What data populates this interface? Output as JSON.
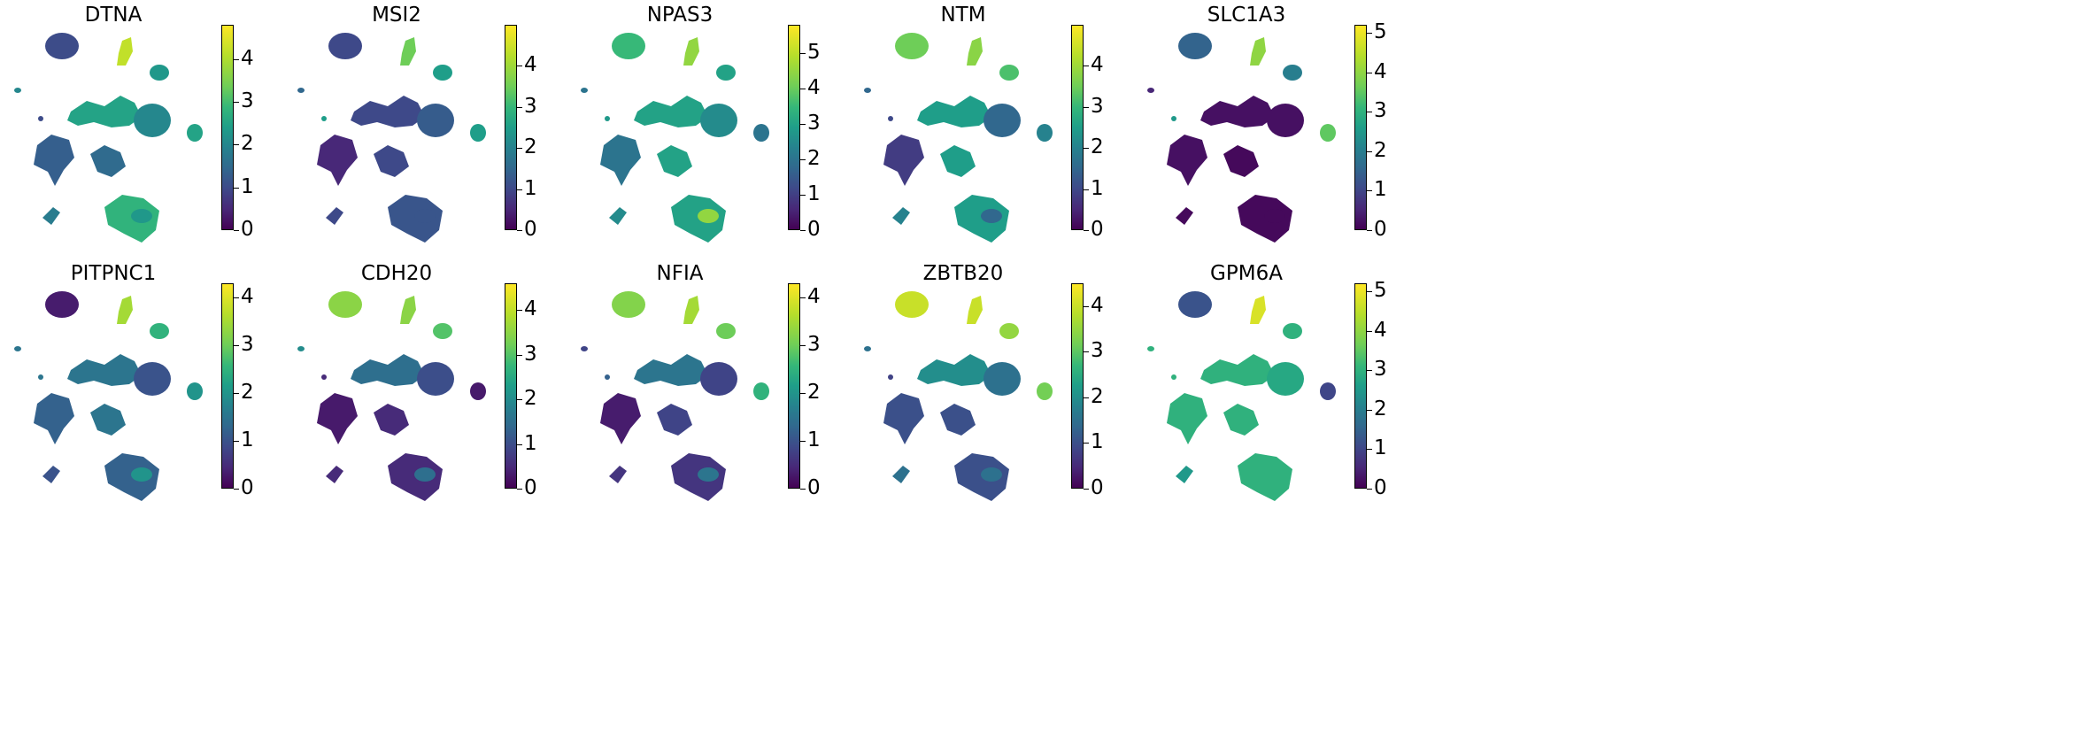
{
  "chart_data": [
    {
      "type": "scatter",
      "title": "DTNA",
      "colormap": "viridis",
      "colorbar_ticks": [
        0,
        1,
        2,
        3,
        4
      ],
      "colorbar_range": [
        0,
        4.8
      ],
      "cluster_values": {
        "c1": 1.0,
        "c2": 4.2,
        "c3": 2.3,
        "c4": 2.5,
        "c5": 2.0,
        "c6": 1.3,
        "c7": 2.5,
        "c8": 1.5,
        "c9": 2.8,
        "c10": 1.8,
        "c11": 2.0,
        "c12": 2.3,
        "c13": 1.0
      }
    },
    {
      "type": "scatter",
      "title": "MSI2",
      "colormap": "viridis",
      "colorbar_ticks": [
        0,
        1,
        2,
        3,
        4
      ],
      "colorbar_range": [
        0,
        5.0
      ],
      "cluster_values": {
        "c1": 1.0,
        "c2": 3.5,
        "c3": 2.5,
        "c4": 1.0,
        "c5": 1.3,
        "c6": 0.5,
        "c7": 2.5,
        "c8": 1.0,
        "c9": 1.2,
        "c10": 1.0,
        "c11": 1.5,
        "c12": 1.2,
        "c13": 2.5
      }
    },
    {
      "type": "scatter",
      "title": "NPAS3",
      "colormap": "viridis",
      "colorbar_ticks": [
        0,
        1,
        2,
        3,
        4,
        5
      ],
      "colorbar_range": [
        0,
        5.8
      ],
      "cluster_values": {
        "c1": 3.5,
        "c2": 4.5,
        "c3": 3.0,
        "c4": 3.0,
        "c5": 2.5,
        "c6": 2.0,
        "c7": 2.0,
        "c8": 3.0,
        "c9": 3.0,
        "c10": 2.5,
        "c11": 2.0,
        "c12": 4.5,
        "c13": 2.8
      }
    },
    {
      "type": "scatter",
      "title": "NTM",
      "colormap": "viridis",
      "colorbar_ticks": [
        0,
        1,
        2,
        3,
        4
      ],
      "colorbar_range": [
        0,
        5.0
      ],
      "cluster_values": {
        "c1": 3.5,
        "c2": 3.8,
        "c3": 3.2,
        "c4": 2.5,
        "c5": 1.5,
        "c6": 0.8,
        "c7": 2.0,
        "c8": 2.5,
        "c9": 2.5,
        "c10": 2.0,
        "c11": 1.5,
        "c12": 1.5,
        "c13": 1.0
      }
    },
    {
      "type": "scatter",
      "title": "SLC1A3",
      "colormap": "viridis",
      "colorbar_ticks": [
        0,
        1,
        2,
        3,
        4,
        5
      ],
      "colorbar_range": [
        0,
        5.2
      ],
      "cluster_values": {
        "c1": 1.5,
        "c2": 4.0,
        "c3": 2.0,
        "c4": 0.2,
        "c5": 0.2,
        "c6": 0.2,
        "c7": 3.5,
        "c8": 0.1,
        "c9": 0.1,
        "c10": 0.1,
        "c11": 0.5,
        "c12": 0.1,
        "c13": 2.5
      }
    },
    {
      "type": "scatter",
      "title": "PITPNC1",
      "colormap": "viridis",
      "colorbar_ticks": [
        0,
        1,
        2,
        3,
        4
      ],
      "colorbar_range": [
        0,
        4.3
      ],
      "cluster_values": {
        "c1": 0.3,
        "c2": 3.5,
        "c3": 2.5,
        "c4": 1.5,
        "c5": 1.0,
        "c6": 1.2,
        "c7": 2.0,
        "c8": 1.5,
        "c9": 1.2,
        "c10": 1.0,
        "c11": 1.5,
        "c12": 2.0,
        "c13": 1.5
      }
    },
    {
      "type": "scatter",
      "title": "CDH20",
      "colormap": "viridis",
      "colorbar_ticks": [
        0,
        1,
        2,
        3,
        4
      ],
      "colorbar_range": [
        0,
        4.6
      ],
      "cluster_values": {
        "c1": 3.5,
        "c2": 3.5,
        "c3": 3.0,
        "c4": 1.5,
        "c5": 1.0,
        "c6": 0.3,
        "c7": 0.3,
        "c8": 0.5,
        "c9": 0.5,
        "c10": 0.5,
        "c11": 2.0,
        "c12": 1.5,
        "c13": 0.5
      }
    },
    {
      "type": "scatter",
      "title": "NFIA",
      "colormap": "viridis",
      "colorbar_ticks": [
        0,
        1,
        2,
        3,
        4
      ],
      "colorbar_range": [
        0,
        4.3
      ],
      "cluster_values": {
        "c1": 3.2,
        "c2": 3.5,
        "c3": 3.0,
        "c4": 1.5,
        "c5": 0.8,
        "c6": 0.3,
        "c7": 2.5,
        "c8": 0.8,
        "c9": 0.6,
        "c10": 0.6,
        "c11": 0.8,
        "c12": 1.5,
        "c13": 1.2
      }
    },
    {
      "type": "scatter",
      "title": "ZBTB20",
      "colormap": "viridis",
      "colorbar_ticks": [
        0,
        1,
        2,
        3,
        4
      ],
      "colorbar_range": [
        0,
        4.5
      ],
      "cluster_values": {
        "c1": 4.0,
        "c2": 4.0,
        "c3": 3.5,
        "c4": 2.0,
        "c5": 1.5,
        "c6": 1.0,
        "c7": 3.2,
        "c8": 1.0,
        "c9": 1.0,
        "c10": 1.5,
        "c11": 1.5,
        "c12": 1.5,
        "c13": 0.8
      }
    },
    {
      "type": "scatter",
      "title": "GPM6A",
      "colormap": "viridis",
      "colorbar_ticks": [
        0,
        1,
        2,
        3,
        4,
        5
      ],
      "colorbar_range": [
        0,
        5.2
      ],
      "cluster_values": {
        "c1": 1.2,
        "c2": 4.8,
        "c3": 3.0,
        "c4": 3.0,
        "c5": 2.8,
        "c6": 3.0,
        "c7": 1.0,
        "c8": 3.0,
        "c9": 3.0,
        "c10": 2.5,
        "c11": 3.0,
        "c12": 3.0,
        "c13": 3.0
      }
    }
  ]
}
